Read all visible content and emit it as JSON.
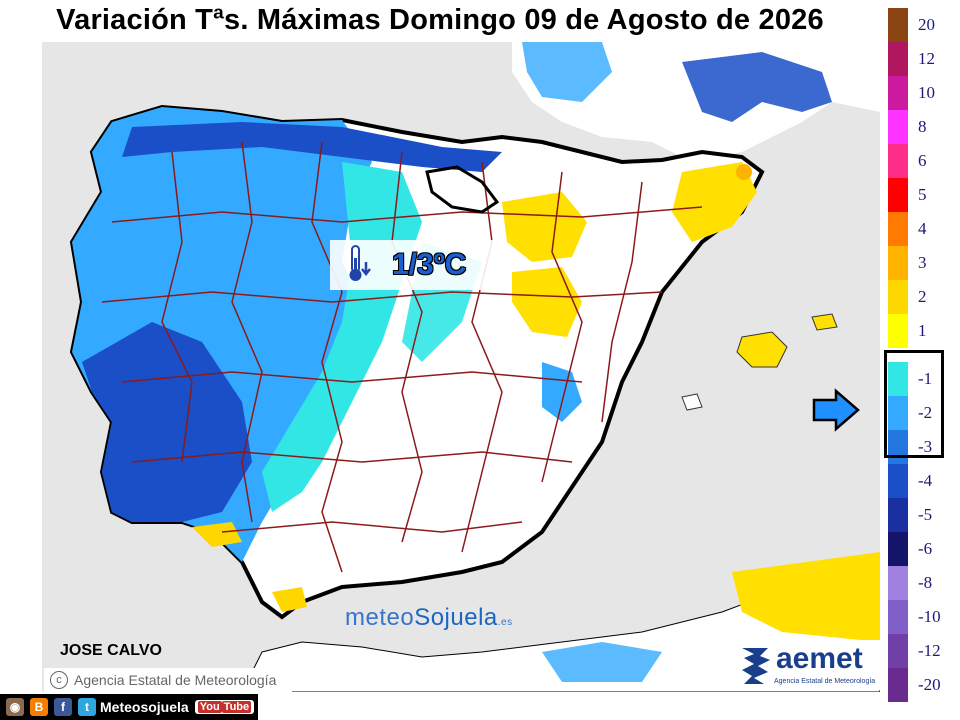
{
  "title": "Variación Tªs. Máximas Domingo 09 de Agosto de 2026",
  "value_label": "1/3ºC",
  "author": "JOSE CALVO",
  "agency_credit": "Agencia Estatal de Meteorología",
  "watermark": {
    "part1": "meteo",
    "part2": "Sojuela",
    "suffix": ".es"
  },
  "aemet": {
    "name": "aemet",
    "subtitle": "Agencia Estatal de Meteorología"
  },
  "social": {
    "label": "Meteosojuela",
    "youtube_prefix": "You",
    "youtube_suffix": "Tube"
  },
  "legend": [
    {
      "label": "20",
      "color": "#8b4513"
    },
    {
      "label": "12",
      "color": "#b0175e"
    },
    {
      "label": "10",
      "color": "#cc1aa0"
    },
    {
      "label": "8",
      "color": "#ff33ff"
    },
    {
      "label": "6",
      "color": "#ff2d8a"
    },
    {
      "label": "5",
      "color": "#ff0000"
    },
    {
      "label": "4",
      "color": "#ff7a00"
    },
    {
      "label": "3",
      "color": "#ffb300"
    },
    {
      "label": "2",
      "color": "#ffd700"
    },
    {
      "label": "1",
      "color": "#ffff00"
    },
    {
      "label": "",
      "color": "#ffffff"
    },
    {
      "label": "-1",
      "color": "#33e6e6"
    },
    {
      "label": "-2",
      "color": "#33aaff"
    },
    {
      "label": "-3",
      "color": "#2277e0"
    },
    {
      "label": "-4",
      "color": "#1a4fc8"
    },
    {
      "label": "-5",
      "color": "#1a2fa0"
    },
    {
      "label": "-6",
      "color": "#14146b"
    },
    {
      "label": "-8",
      "color": "#a080e0"
    },
    {
      "label": "-10",
      "color": "#8060c8"
    },
    {
      "label": "-12",
      "color": "#7040a8"
    },
    {
      "label": "-20",
      "color": "#6a2a90"
    }
  ],
  "colors": {
    "sea": "#e6e6e6",
    "land_cool": "#33aaff",
    "land_deep": "#1a4fc8",
    "land_cyan": "#33e6e6",
    "land_warm": "#ffe000",
    "border": "#8b1a1a",
    "coast": "#000000"
  }
}
